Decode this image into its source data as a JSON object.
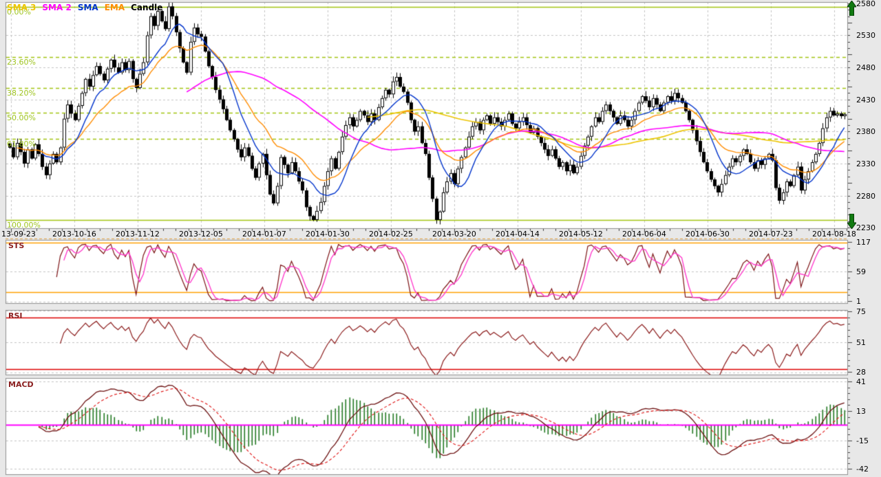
{
  "app": {
    "kind": "stock-charting-workspace"
  },
  "colors": {
    "background": "#e8e8e8",
    "plot_background": "#ffffff",
    "panel_border": "#909090",
    "grid": "#c4c4c4",
    "fib_line": "#a2c410",
    "fib_label": "#9ec41e",
    "candle_up_fill": "#ffffff",
    "candle_down_fill": "#000000",
    "candle_stroke": "#000000",
    "sma3": "#edc500",
    "sma2": "#ff00ff",
    "sma": "#0033cc",
    "ema": "#ff8c00",
    "sts_k": "#7b1113",
    "sts_d": "#ff3ccc",
    "sts_threshold": "#ffa000",
    "separator_dashed": "#e0a040",
    "rsi_line": "#8b1a1a",
    "rsi_threshold": "#dd0000",
    "macd_line": "#6b0f0f",
    "macd_signal": "#e01010",
    "macd_hist": "#217821",
    "macd_zero": "#ff00ff",
    "scroll_arrow": "#117a11",
    "tick_text": "#000000",
    "title_text": "#8b2020"
  },
  "legend": {
    "items": [
      {
        "label": "SMA 3",
        "color": "#edc500"
      },
      {
        "label": "SMA 2",
        "color": "#ff00ff"
      },
      {
        "label": "SMA",
        "color": "#0033cc"
      },
      {
        "label": "EMA",
        "color": "#ff8c00"
      },
      {
        "label": "Candle",
        "color": "#000000"
      }
    ]
  },
  "axis": {
    "dates": [
      "13-09-23",
      "2013-10-16",
      "2013-11-12",
      "2013-12-05",
      "2014-01-07",
      "2014-01-30",
      "2014-02-25",
      "2014-03-20",
      "2014-04-14",
      "2014-05-12",
      "2014-06-04",
      "2014-06-30",
      "2014-07-23",
      "2014-08-18"
    ],
    "price_ticks": [
      2580,
      2530,
      2480,
      2430,
      2380,
      2330,
      2280,
      2230
    ],
    "sts_ticks": [
      117,
      59,
      1
    ],
    "rsi_ticks": [
      75,
      51,
      28
    ],
    "macd_ticks": [
      41,
      13,
      -15,
      -42
    ]
  },
  "scroll_arrows": {
    "up_icon": "arrow-up-icon",
    "down_icon": "arrow-down-icon"
  },
  "chart_data": [
    {
      "type": "candlestick",
      "panel": "price",
      "title": "",
      "ylim": [
        2228,
        2582
      ],
      "y_ticks": [
        2580,
        2530,
        2480,
        2430,
        2380,
        2330,
        2280,
        2230
      ],
      "grid_levels": [
        2530,
        2480,
        2430,
        2380,
        2330,
        2280
      ],
      "x_tick_labels": [
        "13-09-23",
        "2013-10-16",
        "2013-11-12",
        "2013-12-05",
        "2014-01-07",
        "2014-01-30",
        "2014-02-25",
        "2014-03-20",
        "2014-04-14",
        "2014-05-12",
        "2014-06-04",
        "2014-06-30",
        "2014-07-23",
        "2014-08-18"
      ],
      "fibonacci": [
        {
          "label": "0.00%",
          "value": 2575,
          "style": "solid"
        },
        {
          "label": "23.60%",
          "value": 2496,
          "style": "dashed"
        },
        {
          "label": "38.20%",
          "value": 2448,
          "style": "dashed"
        },
        {
          "label": "50.00%",
          "value": 2409,
          "style": "dashed"
        },
        {
          "label": "61.80%",
          "value": 2369,
          "style": "dashed"
        },
        {
          "label": "100.00%",
          "value": 2242,
          "style": "solid"
        }
      ],
      "overlays": [
        {
          "name": "SMA 3",
          "type": "sma",
          "period": 100,
          "color": "#edc500"
        },
        {
          "name": "SMA 2",
          "type": "sma",
          "period": 50,
          "color": "#ff00ff"
        },
        {
          "name": "SMA",
          "type": "sma",
          "period": 10,
          "color": "#0033cc"
        },
        {
          "name": "EMA",
          "type": "ema",
          "period": 20,
          "color": "#ff8c00"
        }
      ],
      "closes": [
        2355,
        2340,
        2362,
        2348,
        2330,
        2352,
        2338,
        2360,
        2345,
        2325,
        2312,
        2330,
        2345,
        2332,
        2355,
        2400,
        2422,
        2408,
        2398,
        2420,
        2440,
        2462,
        2450,
        2468,
        2482,
        2470,
        2460,
        2478,
        2492,
        2480,
        2472,
        2488,
        2476,
        2490,
        2462,
        2448,
        2470,
        2488,
        2530,
        2560,
        2545,
        2568,
        2552,
        2540,
        2575,
        2560,
        2535,
        2510,
        2488,
        2472,
        2520,
        2542,
        2532,
        2528,
        2505,
        2482,
        2465,
        2445,
        2430,
        2415,
        2398,
        2382,
        2368,
        2352,
        2340,
        2355,
        2342,
        2322,
        2308,
        2330,
        2345,
        2312,
        2282,
        2268,
        2295,
        2340,
        2328,
        2315,
        2332,
        2318,
        2302,
        2288,
        2262,
        2248,
        2242,
        2256,
        2270,
        2295,
        2318,
        2338,
        2322,
        2348,
        2372,
        2390,
        2402,
        2388,
        2398,
        2412,
        2405,
        2395,
        2408,
        2398,
        2418,
        2432,
        2445,
        2438,
        2458,
        2465,
        2450,
        2442,
        2425,
        2398,
        2380,
        2388,
        2362,
        2345,
        2308,
        2275,
        2242,
        2255,
        2285,
        2302,
        2315,
        2298,
        2322,
        2340,
        2355,
        2372,
        2388,
        2395,
        2382,
        2398,
        2405,
        2392,
        2402,
        2395,
        2388,
        2398,
        2408,
        2392,
        2385,
        2395,
        2402,
        2390,
        2378,
        2385,
        2372,
        2362,
        2352,
        2342,
        2352,
        2338,
        2325,
        2332,
        2318,
        2328,
        2315,
        2325,
        2342,
        2358,
        2372,
        2388,
        2402,
        2395,
        2412,
        2422,
        2412,
        2402,
        2392,
        2405,
        2398,
        2388,
        2398,
        2412,
        2425,
        2435,
        2428,
        2418,
        2432,
        2422,
        2412,
        2425,
        2435,
        2428,
        2440,
        2432,
        2425,
        2412,
        2398,
        2382,
        2365,
        2348,
        2332,
        2318,
        2305,
        2295,
        2285,
        2298,
        2312,
        2325,
        2338,
        2332,
        2342,
        2352,
        2345,
        2332,
        2322,
        2335,
        2328,
        2338,
        2345,
        2335,
        2292,
        2272,
        2285,
        2302,
        2295,
        2312,
        2325,
        2288,
        2305,
        2318,
        2332,
        2345,
        2362,
        2385,
        2402,
        2412,
        2405,
        2408,
        2404,
        2407
      ]
    },
    {
      "type": "line",
      "panel": "oscillator",
      "title": "STS",
      "indicator": {
        "name": "stochastic",
        "k_period": 14,
        "d_period": 3
      },
      "ylim": [
        1,
        117
      ],
      "y_ticks": [
        117,
        59,
        1
      ],
      "thresholds": [
        {
          "value": 115,
          "color": "#ffa000"
        },
        {
          "value": 19,
          "color": "#ffa000"
        }
      ],
      "grid_levels": [
        59,
        0
      ],
      "series_colors": {
        "k": "#7b1113",
        "d": "#ff3ccc"
      }
    },
    {
      "type": "line",
      "panel": "oscillator",
      "title": "RSI",
      "indicator": {
        "name": "rsi",
        "period": 14
      },
      "ylim": [
        24,
        78
      ],
      "y_ticks": [
        75,
        51,
        28
      ],
      "thresholds": [
        {
          "value": 70,
          "color": "#dd0000"
        },
        {
          "value": 30,
          "color": "#dd0000"
        }
      ],
      "grid_levels": [
        75.5,
        51,
        27.5
      ],
      "series_colors": {
        "rsi": "#8b1a1a"
      }
    },
    {
      "type": "line+histogram",
      "panel": "oscillator",
      "title": "MACD",
      "indicator": {
        "name": "macd",
        "fast": 12,
        "slow": 26,
        "signal": 9
      },
      "ylim": [
        -45,
        44
      ],
      "y_ticks": [
        41,
        13,
        -15,
        -42
      ],
      "zero_line": 0,
      "grid_levels": [
        41,
        13,
        -15,
        -42
      ],
      "series_colors": {
        "macd": "#6b0f0f",
        "signal": "#e01010",
        "histogram": "#217821",
        "zero": "#ff00ff"
      }
    }
  ]
}
